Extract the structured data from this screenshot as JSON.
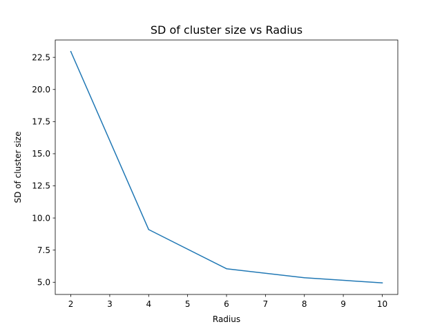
{
  "chart_data": {
    "type": "line",
    "title": "SD of cluster size vs Radius",
    "xlabel": "Radius",
    "ylabel": "SD of cluster size",
    "x": [
      2,
      4,
      6,
      8,
      10
    ],
    "series": [
      {
        "values": [
          22.95,
          9.1,
          6.05,
          5.35,
          4.95
        ],
        "color": "#1f77b4"
      }
    ],
    "xlim": [
      1.6,
      10.4
    ],
    "ylim": [
      4.05,
      23.85
    ],
    "xticks": [
      "2",
      "3",
      "4",
      "5",
      "6",
      "7",
      "8",
      "9",
      "10"
    ],
    "yticks": [
      "5.0",
      "7.5",
      "10.0",
      "12.5",
      "15.0",
      "17.5",
      "20.0",
      "22.5"
    ],
    "grid": false,
    "legend": "none"
  }
}
